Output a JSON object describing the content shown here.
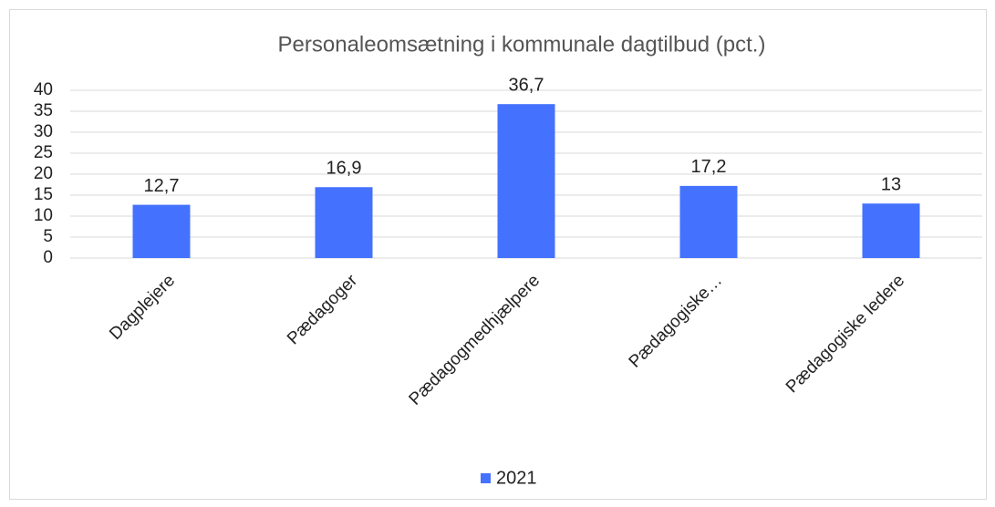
{
  "chart_data": {
    "type": "bar",
    "title": "Personaleomsætning i kommunale dagtilbud (pct.)",
    "categories": [
      "Dagplejere",
      "Pædagoger",
      "Pædagogmedhjælpere",
      "Pædagogiske…",
      "Pædagogiske ledere"
    ],
    "series": [
      {
        "name": "2021",
        "color": "#4472ff",
        "values": [
          12.7,
          16.9,
          36.7,
          17.2,
          13
        ],
        "value_labels": [
          "12,7",
          "16,9",
          "36,7",
          "17,2",
          "13"
        ]
      }
    ],
    "ylim": [
      0,
      40
    ],
    "yticks": [
      0,
      5,
      10,
      15,
      20,
      25,
      30,
      35,
      40
    ],
    "grid": true,
    "legend": "bottom"
  }
}
